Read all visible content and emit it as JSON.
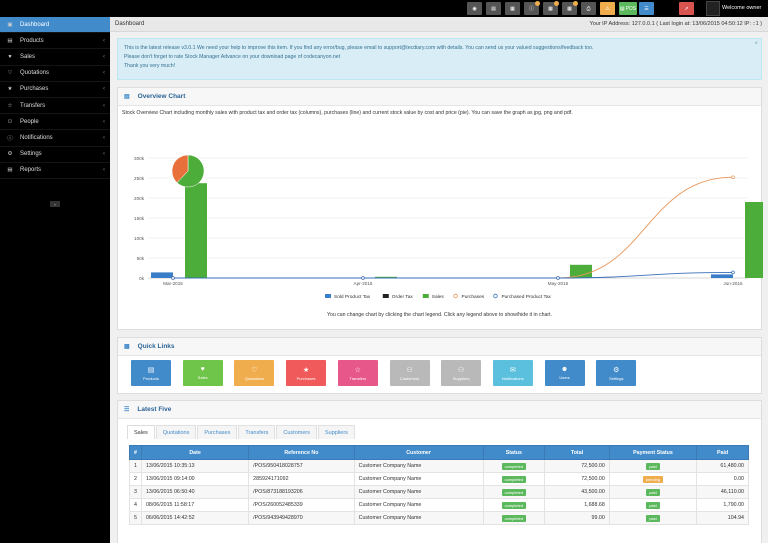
{
  "topbar": {
    "buttons": [
      {
        "icon": "tag-icon"
      },
      {
        "icon": "barcode-icon"
      },
      {
        "icon": "calculator-icon"
      },
      {
        "icon": "info-icon"
      },
      {
        "icon": "calendar-icon"
      },
      {
        "icon": "calendar-icon"
      },
      {
        "icon": "print-icon"
      },
      {
        "icon": "alert-icon"
      },
      {
        "icon": "pos-icon",
        "label": "POS"
      },
      {
        "icon": "list-icon"
      },
      {
        "icon": "pin-icon"
      }
    ],
    "welcome": "Welcome owner"
  },
  "sidebar": {
    "items": [
      {
        "label": "Dashboard",
        "icon": "dashboard-icon",
        "active": true
      },
      {
        "label": "Products",
        "icon": "barcode-icon"
      },
      {
        "label": "Sales",
        "icon": "heart-icon"
      },
      {
        "label": "Quotations",
        "icon": "heart-outline-icon"
      },
      {
        "label": "Purchases",
        "icon": "star-icon"
      },
      {
        "label": "Transfers",
        "icon": "star-outline-icon"
      },
      {
        "label": "People",
        "icon": "users-icon"
      },
      {
        "label": "Notifications",
        "icon": "info-icon"
      },
      {
        "label": "Settings",
        "icon": "cog-icon"
      },
      {
        "label": "Reports",
        "icon": "bar-chart-icon"
      }
    ]
  },
  "breadcrumb": "Dashboard",
  "ipinfo": "Your IP Address: 127.0.0.1 ( Last login at: 13/06/2015 04:50:12 IP: ::1 )",
  "alert": {
    "line1": "This is the latest release v3.0.1 We need your help to improve this item. If you find any error/bug, please email to support@tecdiary.com with details. You can send us your valued suggestions/feedback too.",
    "line2": "Please don't forget to rate Stock Manager Advance on your download page of codecanyon.net",
    "line3": "Thank you very much!"
  },
  "overview": {
    "title": "Overview Chart",
    "description": "Stock Overview Chart including monthly sales with product tax and order tax (columns), purchases (line) and current stock value by cost and price (pie). You can save the graph as jpg, png and pdf.",
    "note": "You can change chart by clicking the chart legend. Click any legend above to show/hide it in chart."
  },
  "chart_data": {
    "type": "bar",
    "categories": [
      "Mar-2015",
      "Apr-2015",
      "May-2015",
      "Jun-2015"
    ],
    "ylim": [
      0,
      300000
    ],
    "yticks": [
      "0k",
      "50k",
      "100k",
      "150k",
      "200k",
      "250k",
      "300k"
    ],
    "series": [
      {
        "name": "Sold Product Tax",
        "type": "bar",
        "color": "#3a7dc8",
        "values": [
          14000,
          0,
          0,
          9000
        ]
      },
      {
        "name": "Order Tax",
        "type": "bar",
        "color": "#222222",
        "values": [
          0,
          0,
          0,
          0
        ]
      },
      {
        "name": "Sales",
        "type": "bar",
        "color": "#4cad3a",
        "values": [
          237000,
          3000,
          33000,
          190000
        ]
      },
      {
        "name": "Purchases",
        "type": "line",
        "color": "#e8965a",
        "values": [
          0,
          0,
          0,
          252000
        ]
      },
      {
        "name": "Purchased Product Tax",
        "type": "line",
        "color": "#3a6fb8",
        "values": [
          0,
          0,
          0,
          14000
        ]
      }
    ],
    "pie": [
      {
        "value": 62,
        "color": "#4cad3a"
      },
      {
        "value": 38,
        "color": "#e8703a"
      }
    ]
  },
  "quicklinks": {
    "title": "Quick Links",
    "items": [
      {
        "label": "Products",
        "icon": "barcode-icon",
        "color": "#428bca"
      },
      {
        "label": "Sales",
        "icon": "heart-icon",
        "color": "#6fc44a"
      },
      {
        "label": "Quotations",
        "icon": "heart-outline-icon",
        "color": "#f0ad4e"
      },
      {
        "label": "Purchases",
        "icon": "star-icon",
        "color": "#f05a5a"
      },
      {
        "label": "Transfers",
        "icon": "star-outline-icon",
        "color": "#e8578a"
      },
      {
        "label": "Customers",
        "icon": "users-icon",
        "color": "#b9b9b9"
      },
      {
        "label": "Suppliers",
        "icon": "users-icon",
        "color": "#b9b9b9"
      },
      {
        "label": "Notifications",
        "icon": "comments-icon",
        "color": "#5bc0de"
      },
      {
        "label": "Users",
        "icon": "user-icon",
        "color": "#428bca"
      },
      {
        "label": "Settings",
        "icon": "cogs-icon",
        "color": "#428bca"
      }
    ]
  },
  "latest": {
    "title": "Latest Five",
    "tabs": [
      "Sales",
      "Quotations",
      "Purchases",
      "Transfers",
      "Customers",
      "Suppliers"
    ],
    "columns": [
      "#",
      "Date",
      "Reference No",
      "Customer",
      "Status",
      "Total",
      "Payment Status",
      "Paid"
    ],
    "rows": [
      {
        "n": "1",
        "date": "13/06/2015 10:35:13",
        "ref": "/POS/950418028757",
        "customer": "Customer Company Name",
        "status": "completed",
        "total": "72,500.00",
        "payment": "paid",
        "paid": "61,480.00"
      },
      {
        "n": "2",
        "date": "13/06/2015 09:14:00",
        "ref": "285924171092",
        "customer": "Customer Company Name",
        "status": "completed",
        "total": "72,500.00",
        "payment": "pending",
        "paid": "0.00"
      },
      {
        "n": "3",
        "date": "13/06/2015 06:50:40",
        "ref": "/POS/873188193206",
        "customer": "Customer Company Name",
        "status": "completed",
        "total": "43,500.00",
        "payment": "paid",
        "paid": "46,110.00"
      },
      {
        "n": "4",
        "date": "08/06/2015 11:58:17",
        "ref": "/POS/260052485339",
        "customer": "Customer Company Name",
        "status": "completed",
        "total": "1,688.68",
        "payment": "paid",
        "paid": "1,790.00"
      },
      {
        "n": "5",
        "date": "06/06/2015 14:42:52",
        "ref": "/POS/943949428970",
        "customer": "Customer Company Name",
        "status": "completed",
        "total": "99.00",
        "payment": "paid",
        "paid": "104.94"
      }
    ]
  }
}
